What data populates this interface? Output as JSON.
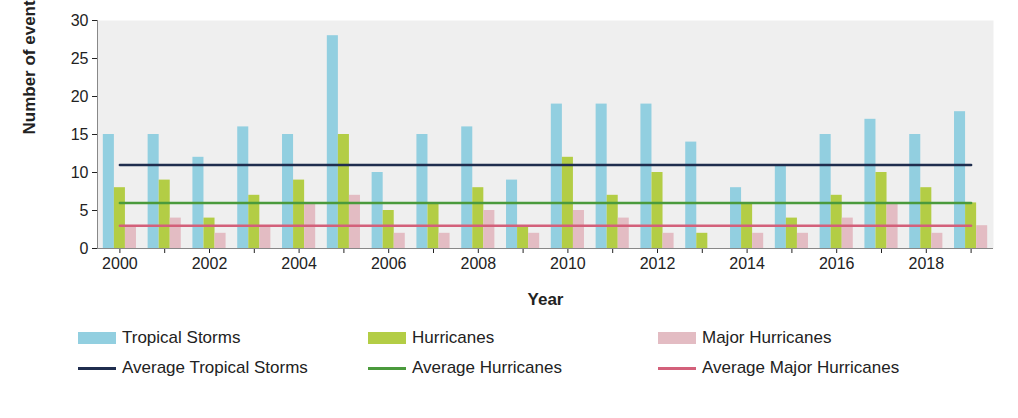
{
  "chart_data": {
    "type": "bar",
    "x_label": "Year",
    "y_label": "Number of events",
    "categories": [
      "2000",
      null,
      "2002",
      null,
      "2004",
      null,
      "2006",
      null,
      "2008",
      null,
      "2010",
      null,
      "2012",
      null,
      "2014",
      null,
      "2016",
      null,
      "2018",
      null
    ],
    "series": [
      {
        "name": "Tropical Storms",
        "type": "bar",
        "color": "#92cfe0",
        "values": [
          15,
          15,
          12,
          16,
          15,
          28,
          10,
          15,
          16,
          9,
          19,
          19,
          19,
          14,
          8,
          11,
          15,
          17,
          15,
          18
        ]
      },
      {
        "name": "Hurricanes",
        "type": "bar",
        "color": "#b3cd45",
        "values": [
          8,
          9,
          4,
          7,
          9,
          15,
          5,
          6,
          8,
          3,
          12,
          7,
          10,
          2,
          6,
          4,
          7,
          10,
          8,
          6
        ]
      },
      {
        "name": "Major Hurricanes",
        "type": "bar",
        "color": "#e3bcc3",
        "values": [
          3,
          4,
          2,
          3,
          6,
          7,
          2,
          2,
          5,
          2,
          5,
          4,
          2,
          0,
          2,
          2,
          4,
          6,
          2,
          3
        ]
      },
      {
        "name": "Average Tropical Storms",
        "type": "line",
        "color": "#1f2d4e",
        "values": [
          11,
          11,
          11,
          11,
          11,
          11,
          11,
          11,
          11,
          11,
          11,
          11,
          11,
          11,
          11,
          11,
          11,
          11,
          11,
          11
        ]
      },
      {
        "name": "Average Hurricanes",
        "type": "line",
        "color": "#4a9a3c",
        "values": [
          6,
          6,
          6,
          6,
          6,
          6,
          6,
          6,
          6,
          6,
          6,
          6,
          6,
          6,
          6,
          6,
          6,
          6,
          6,
          6
        ]
      },
      {
        "name": "Average Major Hurricanes",
        "type": "line",
        "color": "#d3607a",
        "values": [
          3,
          3,
          3,
          3,
          3,
          3,
          3,
          3,
          3,
          3,
          3,
          3,
          3,
          3,
          3,
          3,
          3,
          3,
          3,
          3
        ]
      }
    ],
    "ylim": [
      0,
      30
    ],
    "yticks": [
      0,
      5,
      10,
      15,
      20,
      25,
      30
    ],
    "grid": false,
    "legend": "bottom"
  }
}
